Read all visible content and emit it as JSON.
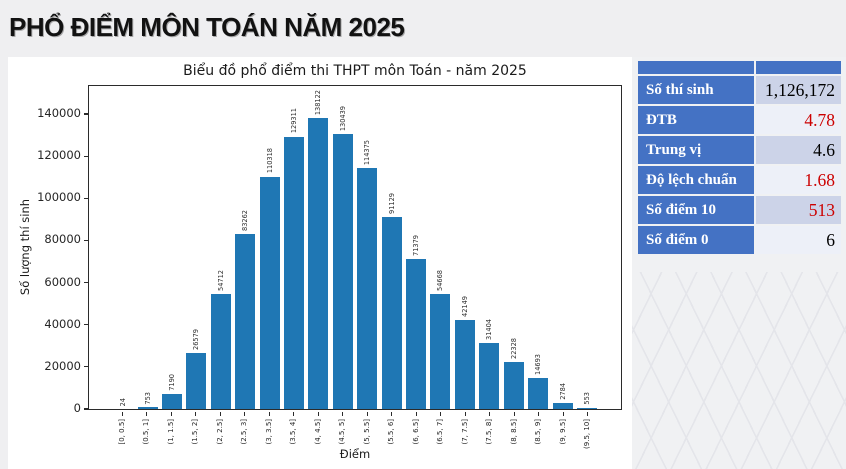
{
  "page_title": "PHỔ ĐIỂM MÔN TOÁN NĂM 2025",
  "chart_data": {
    "type": "bar",
    "title": "Biểu đồ phổ điểm thi THPT môn Toán - năm 2025",
    "xlabel": "Điểm",
    "ylabel": "Số lượng thí sinh",
    "bar_color": "#1f77b4",
    "grid": false,
    "legend": "none",
    "ylim": [
      0,
      153300
    ],
    "yticks": [
      0,
      20000,
      40000,
      60000,
      80000,
      100000,
      120000,
      140000
    ],
    "categories": [
      "[0, 0.5]",
      "(0.5, 1]",
      "(1, 1.5]",
      "(1.5, 2]",
      "(2, 2.5]",
      "(2.5, 3]",
      "(3, 3.5]",
      "(3.5, 4]",
      "(4, 4.5]",
      "(4.5, 5]",
      "(5, 5.5]",
      "(5.5, 6]",
      "(6, 6.5]",
      "(6.5, 7]",
      "(7, 7.5]",
      "(7.5, 8]",
      "(8, 8.5]",
      "(8.5, 9]",
      "(9, 9.5]",
      "(9.5, 10]"
    ],
    "values": [
      24,
      753,
      7190,
      26579,
      54712,
      83262,
      110318,
      129311,
      138122,
      130439,
      114375,
      91129,
      71379,
      54668,
      42149,
      31404,
      22328,
      14693,
      2784,
      553
    ]
  },
  "stats_table": {
    "accent_color": "#4472c4",
    "rows": [
      {
        "label": "Số thí sinh",
        "value": "1,126,172",
        "value_color": "#000000"
      },
      {
        "label": "ĐTB",
        "value": "4.78",
        "value_color": "#cc0000"
      },
      {
        "label": "Trung vị",
        "value": "4.6",
        "value_color": "#000000"
      },
      {
        "label": "Độ lệch chuẩn",
        "value": "1.68",
        "value_color": "#cc0000"
      },
      {
        "label": "Số điểm 10",
        "value": "513",
        "value_color": "#cc0000"
      },
      {
        "label": "Số điểm 0",
        "value": "6",
        "value_color": "#000000"
      }
    ]
  }
}
